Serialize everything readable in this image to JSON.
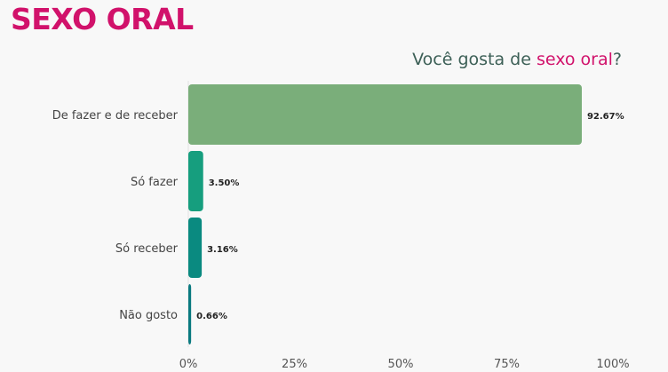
{
  "page": {
    "title": "SEXO ORAL"
  },
  "chart_data": {
    "type": "bar",
    "orientation": "horizontal",
    "title_parts": [
      "Você gosta de ",
      "sexo oral",
      "?"
    ],
    "categories": [
      "De fazer e de receber",
      "Só fazer",
      "Só receber",
      "Não gosto"
    ],
    "values": [
      92.67,
      3.5,
      3.16,
      0.66
    ],
    "value_labels": [
      "92.67%",
      "3.50%",
      "3.16%",
      "0.66%"
    ],
    "bar_colors": [
      "#7aae7a",
      "#169e7e",
      "#0a8a80",
      "#0a7a80"
    ],
    "xlim": [
      0,
      100
    ],
    "xticks": [
      0,
      25,
      50,
      75,
      100
    ],
    "xtick_labels": [
      "0%",
      "25%",
      "50%",
      "75%",
      "100%"
    ],
    "grid": false,
    "legend": "none"
  },
  "colors": {
    "accent": "#d1126b",
    "title_text": "#3d6057",
    "background": "#f8f8f8"
  }
}
